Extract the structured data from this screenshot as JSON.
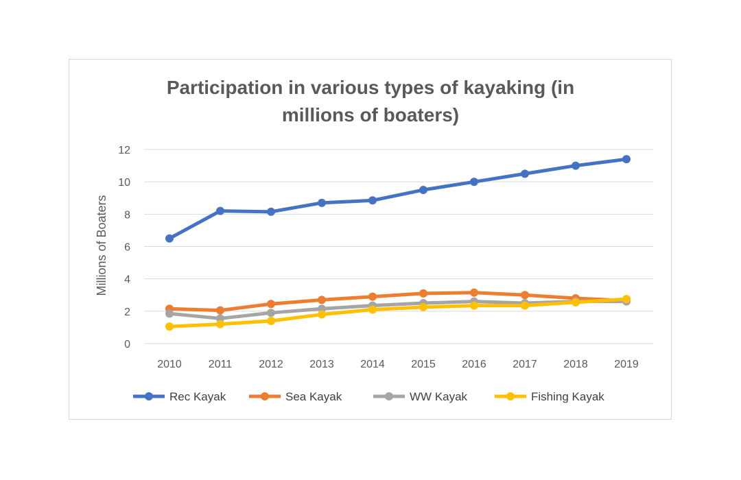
{
  "chart_data": {
    "type": "line",
    "title_line1": "Participation in various types of kayaking (in",
    "title_line2": "millions of boaters)",
    "xlabel": "",
    "ylabel": "Millions of Boaters",
    "ylim": [
      0,
      12
    ],
    "yticks": [
      "0",
      "2",
      "4",
      "6",
      "8",
      "10",
      "12"
    ],
    "categories": [
      "2010",
      "2011",
      "2012",
      "2013",
      "2014",
      "2015",
      "2016",
      "2017",
      "2018",
      "2019"
    ],
    "grid": true,
    "legend_position": "bottom",
    "series": [
      {
        "name": "Rec Kayak",
        "color": "#4472c4",
        "values": [
          6.5,
          8.2,
          8.15,
          8.7,
          8.85,
          9.5,
          10.0,
          10.5,
          11.0,
          11.4
        ]
      },
      {
        "name": "Sea Kayak",
        "color": "#ed7d31",
        "values": [
          2.15,
          2.05,
          2.45,
          2.7,
          2.9,
          3.1,
          3.15,
          3.0,
          2.8,
          2.65
        ]
      },
      {
        "name": "WW Kayak",
        "color": "#a5a5a5",
        "values": [
          1.85,
          1.55,
          1.9,
          2.15,
          2.35,
          2.5,
          2.6,
          2.5,
          2.6,
          2.6
        ]
      },
      {
        "name": "Fishing Kayak",
        "color": "#ffc000",
        "values": [
          1.05,
          1.2,
          1.4,
          1.8,
          2.1,
          2.25,
          2.35,
          2.35,
          2.55,
          2.75
        ]
      }
    ]
  }
}
